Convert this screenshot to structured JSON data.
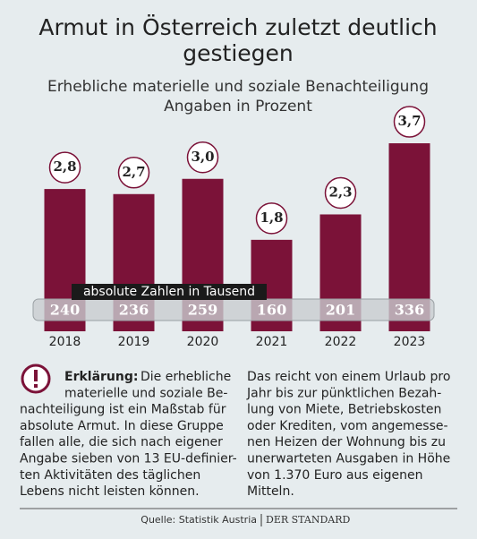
{
  "chart_data": {
    "type": "bar",
    "title": [
      "Armut in Österreich zuletzt deutlich",
      "gestiegen"
    ],
    "subtitle": [
      "Erhebliche materielle und soziale Benachteiligung",
      "Angaben in Prozent"
    ],
    "categories": [
      "2018",
      "2019",
      "2020",
      "2021",
      "2022",
      "2023"
    ],
    "values": [
      2.8,
      2.7,
      3.0,
      1.8,
      2.3,
      3.7
    ],
    "value_labels": [
      "2,8",
      "2,7",
      "3,0",
      "1,8",
      "2,3",
      "3,7"
    ],
    "color": "#7b1238",
    "ylim": [
      0,
      4
    ],
    "absolute": {
      "label": "absolute Zahlen in Tausend",
      "values": [
        240,
        236,
        259,
        160,
        201,
        336
      ]
    },
    "note": {
      "label": "Erklärung:",
      "left": [
        "Die erhebliche",
        "materielle und soziale Be-",
        "nachteiligung ist ein Maßstab für",
        "absolute Armut. In diese Gruppe",
        "fallen alle, die sich nach eigener",
        "Angabe sieben von 13 EU-definier-",
        "ten Aktivitäten des täglichen",
        "Lebens nicht leisten können."
      ],
      "right": [
        "Das reicht von einem Urlaub pro",
        "Jahr bis zur pünktlichen Bezah-",
        "lung von Miete, Betriebskosten",
        "oder Krediten, vom angemesse-",
        "nen Heizen der Wohnung bis zu",
        "unerwarteten Ausgaben in Höhe",
        "von 1.370 Euro aus eigenen",
        "Mitteln."
      ]
    },
    "source": "Quelle: Statistik Austria",
    "publisher": "DER STANDARD"
  }
}
